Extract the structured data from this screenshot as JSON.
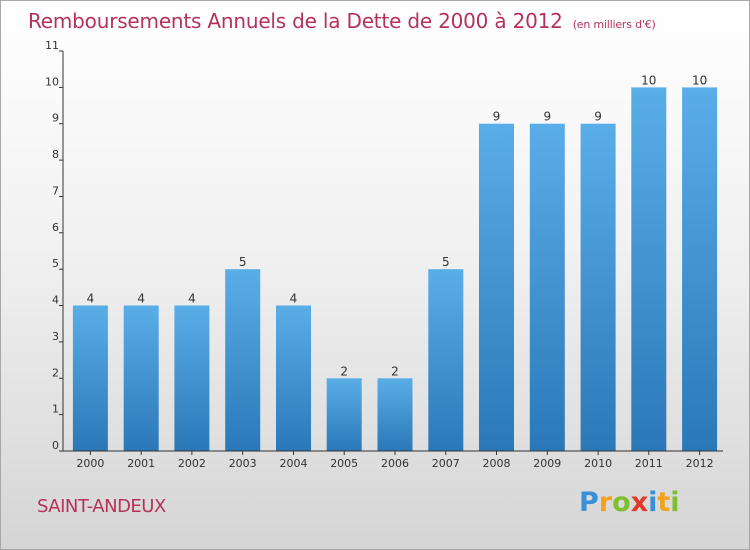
{
  "title": {
    "main": "Remboursements Annuels de la Dette de 2000 à 2012",
    "unit": "(en milliers d'€)"
  },
  "commune": "SAINT-ANDEUX",
  "logo": {
    "letters": [
      {
        "char": "P",
        "color": "#3b8fd6"
      },
      {
        "char": "r",
        "color": "#f2a21d"
      },
      {
        "char": "o",
        "color": "#7fbf2e"
      },
      {
        "char": "x",
        "color": "#e23a2a"
      },
      {
        "char": "i",
        "color": "#3b8fd6"
      },
      {
        "char": "t",
        "color": "#f2a21d"
      },
      {
        "char": "i",
        "color": "#7fbf2e"
      }
    ]
  },
  "colors": {
    "bar_top": "#5aaee8",
    "bar_bottom": "#2a78b8",
    "accent": "#b5325a",
    "axis": "#333333"
  },
  "chart_data": {
    "type": "bar",
    "title": "Remboursements Annuels de la Dette de 2000 à 2012",
    "xlabel": "",
    "ylabel": "",
    "ylim": [
      0,
      11
    ],
    "yticks": [
      0,
      1,
      2,
      3,
      4,
      5,
      6,
      7,
      8,
      9,
      10,
      11
    ],
    "grid": false,
    "categories": [
      "2000",
      "2001",
      "2002",
      "2003",
      "2004",
      "2005",
      "2006",
      "2007",
      "2008",
      "2009",
      "2010",
      "2011",
      "2012"
    ],
    "values": [
      4,
      4,
      4,
      5,
      4,
      2,
      2,
      5,
      9,
      9,
      9,
      10,
      10
    ]
  }
}
